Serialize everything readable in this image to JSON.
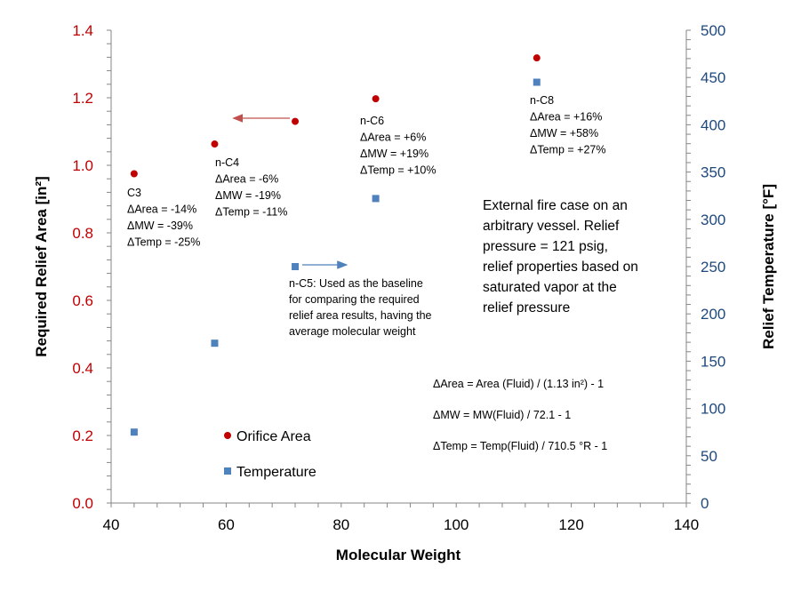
{
  "chart_data": {
    "type": "scatter",
    "xlabel": "Molecular  Weight",
    "ylabel": "Required Relief Area [in²]",
    "y2label": "Relief Temperature  [°F]",
    "xlim": [
      40,
      140
    ],
    "ylim": [
      0,
      1.4
    ],
    "y2lim": [
      0,
      500
    ],
    "xticks": [
      40,
      60,
      80,
      100,
      120,
      140
    ],
    "yticks": [
      "0.0",
      "0.2",
      "0.4",
      "0.6",
      "0.8",
      "1.0",
      "1.2",
      "1.4"
    ],
    "y2ticks": [
      "0",
      "50",
      "100",
      "150",
      "200",
      "250",
      "300",
      "350",
      "400",
      "450",
      "500"
    ],
    "grid": false,
    "legend_placement": "bottom-left",
    "colors": {
      "area": "#C00000",
      "temp": "#4F81BD",
      "left_axis_labels": "#C00000",
      "right_axis_labels": "#1F497D"
    },
    "series": [
      {
        "name": "Orifice Area",
        "axis": "left",
        "marker": "circle",
        "x": [
          44,
          58,
          72,
          86,
          114
        ],
        "y": [
          0.975,
          1.063,
          1.13,
          1.197,
          1.318
        ]
      },
      {
        "name": "Temperature",
        "axis": "right",
        "marker": "square",
        "x": [
          44,
          58,
          72,
          86,
          114
        ],
        "y": [
          75,
          169,
          250,
          322,
          445
        ]
      }
    ],
    "annotations": {
      "c3": [
        "C3",
        "ΔArea = -14%",
        "ΔMW =  -39%",
        "ΔTemp = -25%"
      ],
      "nc4": [
        "n-C4",
        "ΔArea = -6%",
        "ΔMW =  -19%",
        "ΔTemp = -11%"
      ],
      "nc6": [
        "n-C6",
        "ΔArea = +6%",
        "ΔMW =  +19%",
        "ΔTemp = +10%"
      ],
      "nc8": [
        "n-C8",
        "ΔArea = +16%",
        "ΔMW =  +58%",
        "ΔTemp = +27%"
      ],
      "nc5": [
        "n-C5:  Used as the baseline",
        "for comparing the required",
        "relief area results, having the",
        "average molecular weight"
      ],
      "note": [
        "External fire case on an",
        "arbitrary vessel.  Relief",
        "pressure = 121 psig,",
        "relief properties based on",
        "saturated vapor at the",
        "relief pressure"
      ],
      "formulas": [
        "ΔArea = Area (Fluid) / (1.13 in²) - 1",
        "ΔMW =  MW(Fluid) / 72.1 - 1",
        "ΔTemp = Temp(Fluid) / 710.5 °R - 1"
      ]
    }
  }
}
